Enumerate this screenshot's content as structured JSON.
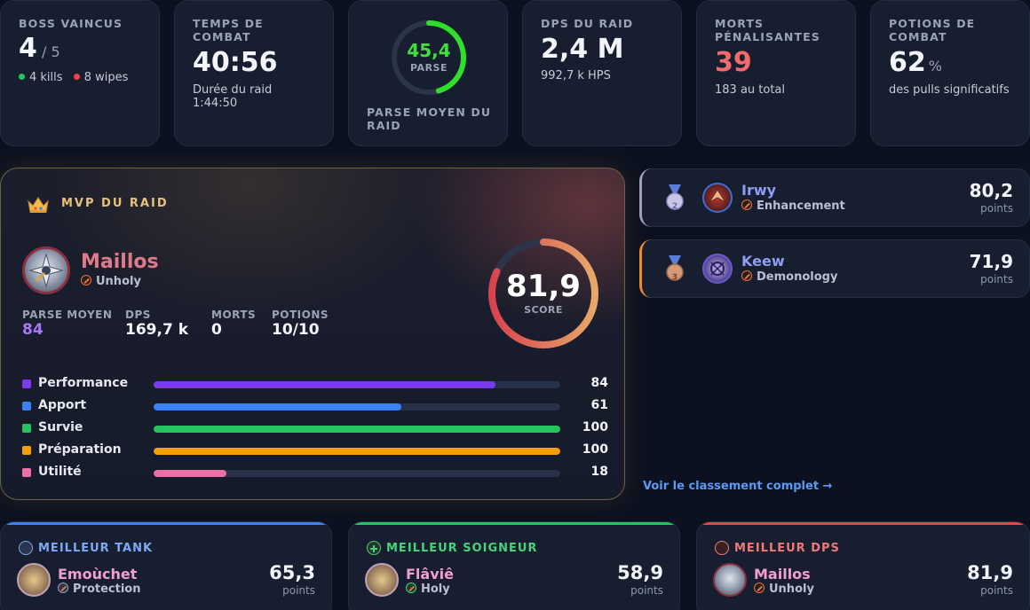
{
  "stats": {
    "boss": {
      "label": "BOSS VAINCUS",
      "value": "4",
      "total": "/ 5",
      "kills": "4 kills",
      "wipes": "8 wipes"
    },
    "time": {
      "label_1": "TEMPS DE",
      "label_2": "COMBAT",
      "value": "40:56",
      "sub_1": "Durée du raid",
      "sub_2": "1:44:50"
    },
    "parse": {
      "value": "45,4",
      "caption": "PARSE",
      "percent": 45.4,
      "label_1": "PARSE MOYEN DU",
      "label_2": "RAID"
    },
    "dps": {
      "label": "DPS DU RAID",
      "value": "2,4 M",
      "sub": "992,7 k HPS"
    },
    "deaths": {
      "label_1": "MORTS",
      "label_2": "PÉNALISANTES",
      "value": "39",
      "sub": "183 au total"
    },
    "potions": {
      "label_1": "POTIONS DE",
      "label_2": "COMBAT",
      "value": "62",
      "unit": "%",
      "sub": "des pulls significatifs"
    }
  },
  "mvp": {
    "title": "MVP DU RAID",
    "name": "Maillos",
    "spec": "Unholy",
    "score": "81,9",
    "score_caption": "SCORE",
    "score_percent": 81.9,
    "metrics": [
      {
        "label": "PARSE MOYEN",
        "value": "84"
      },
      {
        "label": "DPS",
        "value": "169,7 k"
      },
      {
        "label": "MORTS",
        "value": "0"
      },
      {
        "label": "POTIONS",
        "value": "10/10"
      }
    ],
    "bars": [
      {
        "label": "Performance",
        "value": 84,
        "color": "#7c3aed"
      },
      {
        "label": "Apport",
        "value": 61,
        "color": "#3b82f6"
      },
      {
        "label": "Survie",
        "value": 100,
        "color": "#22c55e"
      },
      {
        "label": "Préparation",
        "value": 100,
        "color": "#f59e0b"
      },
      {
        "label": "Utilité",
        "value": 18,
        "color": "#ec6fa6"
      }
    ]
  },
  "ranking": [
    {
      "rank": "2",
      "name": "Irwy",
      "spec": "Enhancement",
      "score": "80,2",
      "points": "points",
      "edge_color": "#9aa3b5"
    },
    {
      "rank": "3",
      "name": "Keew",
      "spec": "Demonology",
      "score": "71,9",
      "points": "points",
      "edge_color": "#f08a24"
    }
  ],
  "full_ranking_link": "Voir le classement complet →",
  "best": [
    {
      "header": "MEILLEUR TANK",
      "name": "Emoùchet",
      "spec": "Protection",
      "score": "65,3",
      "points": "points",
      "color": "#3b82f6",
      "header_color": "#7fa8f5"
    },
    {
      "header": "MEILLEUR SOIGNEUR",
      "name": "Flâviê",
      "spec": "Holy",
      "score": "58,9",
      "points": "points",
      "color": "#22c55e",
      "header_color": "#4ad27a"
    },
    {
      "header": "MEILLEUR DPS",
      "name": "Maillos",
      "spec": "Unholy",
      "score": "81,9",
      "points": "points",
      "color": "#ef4444",
      "header_color": "#f07a7a"
    }
  ]
}
